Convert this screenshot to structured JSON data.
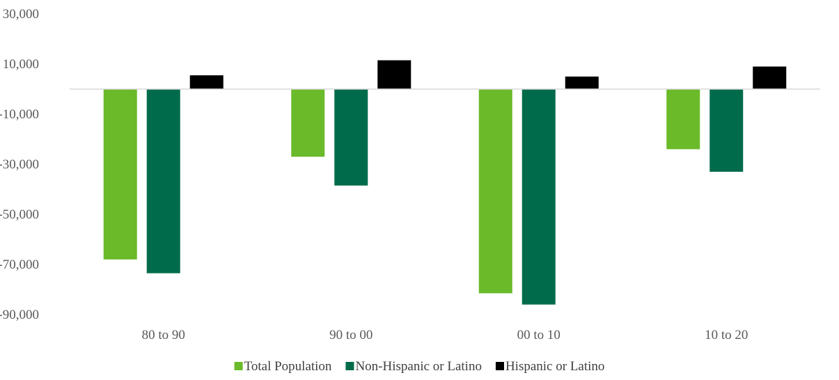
{
  "chart_data": {
    "type": "bar",
    "title": "",
    "xlabel": "",
    "ylabel": "",
    "categories": [
      "80 to 90",
      "90 to 00",
      "00 to 10",
      "10 to 20"
    ],
    "series": [
      {
        "name": "Total Population",
        "color": "#6aba2a",
        "values": [
          -68000,
          -27000,
          -81500,
          -24000
        ]
      },
      {
        "name": "Non-Hispanic or Latino",
        "color": "#006b4b",
        "values": [
          -73500,
          -38500,
          -86000,
          -33000
        ]
      },
      {
        "name": "Hispanic or Latino",
        "color": "#000000",
        "values": [
          5500,
          11500,
          5000,
          9000
        ]
      }
    ],
    "ylim": [
      -90000,
      30000
    ],
    "yticks": [
      30000,
      10000,
      -10000,
      -30000,
      -50000,
      -70000,
      -90000
    ],
    "ytick_labels": [
      "30,000",
      "10,000",
      "-10,000",
      "-30,000",
      "-50,000",
      "-70,000",
      "-90,000"
    ],
    "grid": false,
    "legend_position": "bottom"
  }
}
